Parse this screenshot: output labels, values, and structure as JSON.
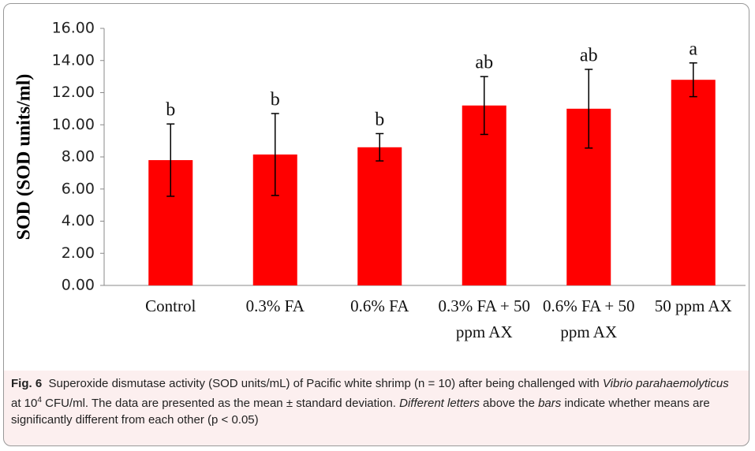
{
  "chart_data": {
    "type": "bar",
    "ylabel": "SOD (SOD units/ml)",
    "categories": [
      "Control",
      "0.3% FA",
      "0.6% FA",
      "0.3% FA + 50 ppm AX",
      "0.6% FA + 50 ppm AX",
      "50 ppm AX"
    ],
    "values": [
      7.8,
      8.15,
      8.6,
      11.2,
      11.0,
      12.8
    ],
    "errors": [
      2.25,
      2.55,
      0.85,
      1.8,
      2.45,
      1.05
    ],
    "annotations": [
      "b",
      "b",
      "b",
      "ab",
      "ab",
      "a"
    ],
    "color": "#ff0000",
    "ylim": [
      0,
      16
    ],
    "yticks": [
      {
        "value": 0,
        "label": "0.00"
      },
      {
        "value": 2,
        "label": "2.00"
      },
      {
        "value": 4,
        "label": "4.00"
      },
      {
        "value": 6,
        "label": "6.00"
      },
      {
        "value": 8,
        "label": "8.00"
      },
      {
        "value": 10,
        "label": "10.00"
      },
      {
        "value": 12,
        "label": "12.00"
      },
      {
        "value": 14,
        "label": "14.00"
      },
      {
        "value": 16,
        "label": "16.00"
      }
    ],
    "grid": false
  },
  "caption": {
    "label": "Fig. 6",
    "parts": [
      "Superoxide dismutase activity (SOD units/mL) of Pacific white shrimp (n = 10) after being challenged with ",
      "Vibrio parahaemolyticus",
      " at 10",
      "4",
      " CFU/ml. The data are presented as the mean ± standard deviation. ",
      "Different letters",
      " above the ",
      "bars",
      " indicate whether means are significantly different from each other (p < 0.05)"
    ]
  }
}
